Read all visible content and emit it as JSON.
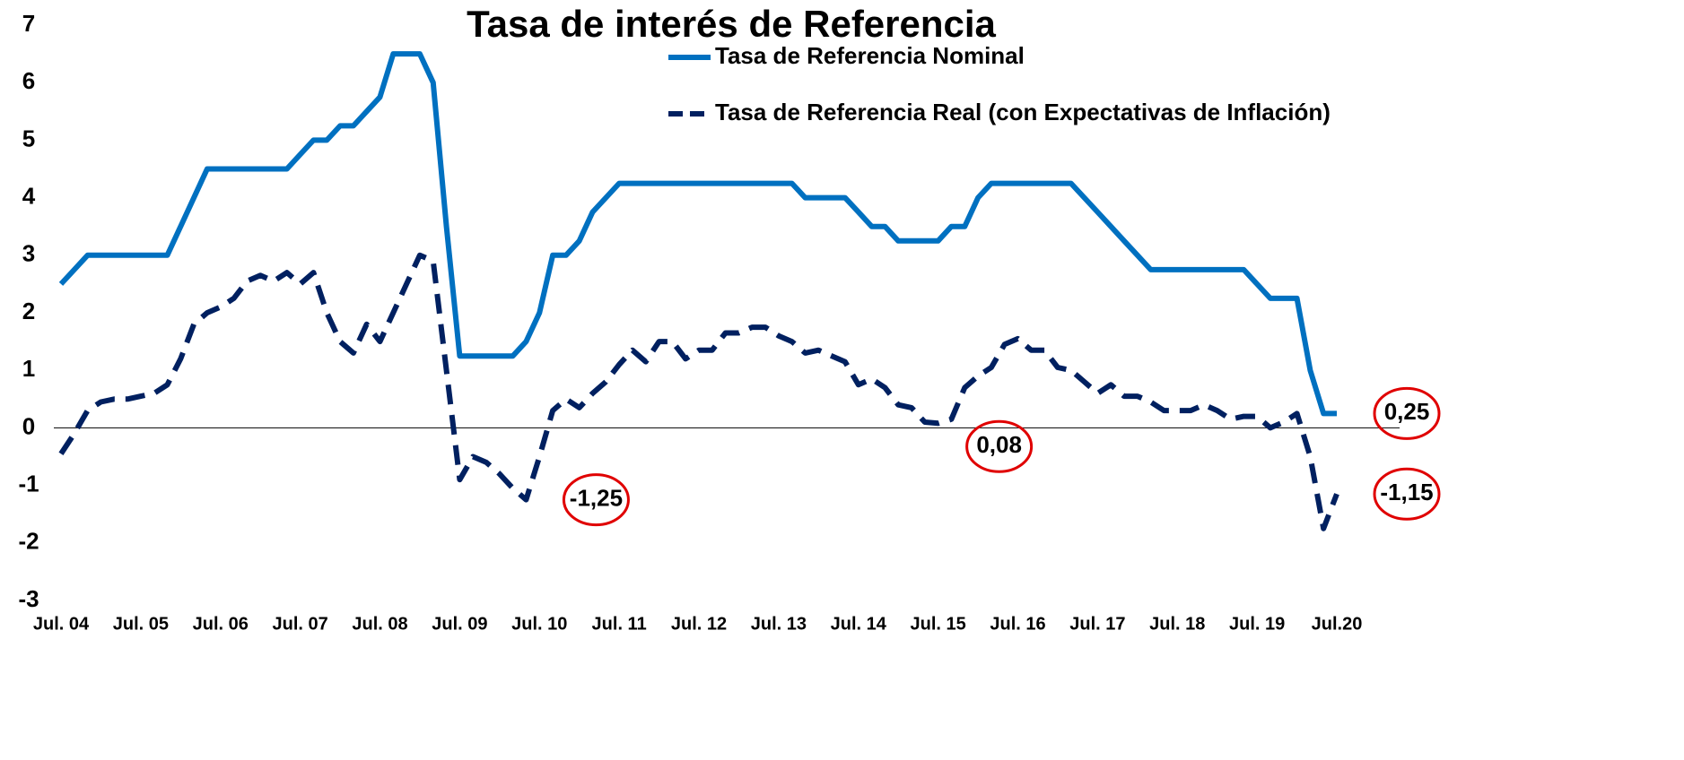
{
  "chart_data": {
    "type": "line",
    "title": "Tasa de interés de Referencia",
    "categories": [
      "Jul. 04",
      null,
      null,
      null,
      null,
      null,
      "Jul. 05",
      null,
      null,
      null,
      null,
      null,
      "Jul. 06",
      null,
      null,
      null,
      null,
      null,
      "Jul. 07",
      null,
      null,
      null,
      null,
      null,
      "Jul. 08",
      null,
      null,
      null,
      null,
      null,
      "Jul. 09",
      null,
      null,
      null,
      null,
      null,
      "Jul. 10",
      null,
      null,
      null,
      null,
      null,
      "Jul. 11",
      null,
      null,
      null,
      null,
      null,
      "Jul. 12",
      null,
      null,
      null,
      null,
      null,
      "Jul. 13",
      null,
      null,
      null,
      null,
      null,
      "Jul. 14",
      null,
      null,
      null,
      null,
      null,
      "Jul. 15",
      null,
      null,
      null,
      null,
      null,
      "Jul. 16",
      null,
      null,
      null,
      null,
      null,
      "Jul. 17",
      null,
      null,
      null,
      null,
      null,
      "Jul. 18",
      null,
      null,
      null,
      null,
      null,
      "Jul. 19",
      null,
      null,
      null,
      null,
      null,
      "Jul.20"
    ],
    "series": [
      {
        "name": "Tasa de Referencia Nominal",
        "color": "#0070c0",
        "dash": false,
        "values": [
          2.5,
          2.75,
          3,
          3,
          3,
          3,
          3,
          3,
          3,
          3.5,
          4,
          4.5,
          4.5,
          4.5,
          4.5,
          4.5,
          4.5,
          4.5,
          4.75,
          5,
          5,
          5.25,
          5.25,
          5.5,
          5.75,
          6.5,
          6.5,
          6.5,
          6,
          3.5,
          1.25,
          1.25,
          1.25,
          1.25,
          1.25,
          1.5,
          2,
          3,
          3,
          3.25,
          3.75,
          4,
          4.25,
          4.25,
          4.25,
          4.25,
          4.25,
          4.25,
          4.25,
          4.25,
          4.25,
          4.25,
          4.25,
          4.25,
          4.25,
          4.25,
          4,
          4,
          4,
          4,
          3.75,
          3.5,
          3.5,
          3.25,
          3.25,
          3.25,
          3.25,
          3.5,
          3.5,
          4,
          4.25,
          4.25,
          4.25,
          4.25,
          4.25,
          4.25,
          4.25,
          4,
          3.75,
          3.5,
          3.25,
          3,
          2.75,
          2.75,
          2.75,
          2.75,
          2.75,
          2.75,
          2.75,
          2.75,
          2.5,
          2.25,
          2.25,
          2.25,
          1,
          0.25,
          0.25
        ],
        "value_labels": [
          null,
          null,
          null,
          null,
          null,
          null,
          null,
          null,
          null,
          null,
          null,
          null,
          null,
          null,
          null,
          null,
          null,
          null,
          null,
          null,
          null,
          null,
          null,
          null,
          null,
          null,
          null,
          null,
          null,
          null,
          null,
          null,
          null,
          null,
          null,
          null,
          null,
          null,
          null,
          null,
          null,
          null,
          null,
          null,
          null,
          null,
          null,
          null,
          null,
          null,
          null,
          null,
          null,
          null,
          null,
          null,
          null,
          null,
          null,
          null,
          null,
          null,
          null,
          null,
          null,
          null,
          null,
          null,
          null,
          null,
          null,
          null,
          null,
          null,
          null,
          null,
          null,
          null,
          null,
          null,
          null,
          null,
          null,
          null,
          null,
          null,
          null,
          null,
          null,
          null,
          null,
          null,
          null,
          null,
          null,
          null,
          "0,25"
        ]
      },
      {
        "name": "Tasa de Referencia Real (con Expectativas de Inflación)",
        "color": "#002060",
        "dash": true,
        "values": [
          -0.45,
          -0.1,
          0.3,
          0.45,
          0.5,
          0.5,
          0.55,
          0.6,
          0.75,
          1.2,
          1.8,
          2,
          2.1,
          2.25,
          2.55,
          2.65,
          2.55,
          2.7,
          2.5,
          2.7,
          2,
          1.5,
          1.3,
          1.8,
          1.5,
          2,
          2.5,
          3,
          2.9,
          1,
          -0.9,
          -0.5,
          -0.6,
          -0.8,
          -1.05,
          -1.25,
          -0.5,
          0.3,
          0.5,
          0.35,
          0.6,
          0.8,
          1.1,
          1.35,
          1.15,
          1.5,
          1.5,
          1.2,
          1.35,
          1.35,
          1.65,
          1.65,
          1.75,
          1.75,
          1.6,
          1.5,
          1.3,
          1.35,
          1.25,
          1.15,
          0.75,
          0.85,
          0.7,
          0.4,
          0.35,
          0.1,
          0.08,
          0.15,
          0.7,
          0.9,
          1.05,
          1.45,
          1.55,
          1.35,
          1.35,
          1.05,
          1,
          0.8,
          0.6,
          0.75,
          0.55,
          0.55,
          0.45,
          0.3,
          0.3,
          0.3,
          0.4,
          0.3,
          0.15,
          0.2,
          0.2,
          0,
          0.1,
          0.25,
          -0.5,
          -1.75,
          -1.15
        ],
        "value_labels": [
          null,
          null,
          null,
          null,
          null,
          null,
          null,
          null,
          null,
          null,
          null,
          null,
          null,
          null,
          null,
          null,
          null,
          null,
          null,
          null,
          null,
          null,
          null,
          null,
          null,
          null,
          null,
          null,
          null,
          null,
          null,
          null,
          null,
          null,
          null,
          "-1,25",
          null,
          null,
          null,
          null,
          null,
          null,
          null,
          null,
          null,
          null,
          null,
          null,
          null,
          null,
          null,
          null,
          null,
          null,
          null,
          null,
          null,
          null,
          null,
          null,
          null,
          null,
          null,
          null,
          null,
          null,
          "0,08",
          null,
          null,
          null,
          null,
          null,
          null,
          null,
          null,
          null,
          null,
          null,
          null,
          null,
          null,
          null,
          null,
          null,
          null,
          null,
          null,
          null,
          null,
          null,
          null,
          null,
          null,
          null,
          null,
          null,
          "-1,15"
        ]
      }
    ],
    "ylim": [
      -3,
      7
    ],
    "yticks": [
      -3,
      -2,
      -1,
      0,
      1,
      2,
      3,
      4,
      5,
      6,
      7
    ],
    "grid": false,
    "zero_line": true,
    "label_circle_color": "#e00000"
  }
}
